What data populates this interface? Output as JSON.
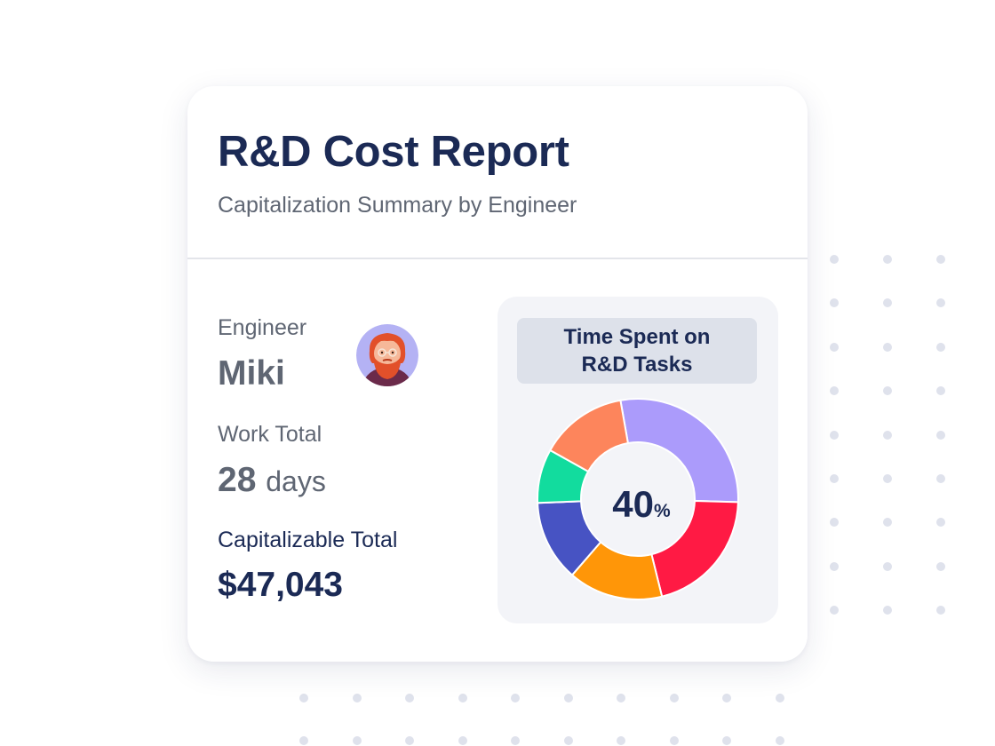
{
  "report": {
    "title": "R&D Cost Report",
    "subtitle": "Capitalization Summary by Engineer"
  },
  "engineer": {
    "label": "Engineer",
    "name": "Miki",
    "avatar_icon": "bearded-man-avatar-icon"
  },
  "work_total": {
    "label": "Work Total",
    "value": "28",
    "unit": "days"
  },
  "capitalizable_total": {
    "label": "Capitalizable Total",
    "value": "$47,043"
  },
  "chart": {
    "title_line1": "Time Spent on",
    "title_line2": "R&D Tasks",
    "center_value": "40",
    "center_unit": "%"
  },
  "chart_data": {
    "type": "pie",
    "title": "Time Spent on R&D Tasks",
    "center_label": "40%",
    "series": [
      {
        "share": 0.26,
        "color": "#ab9bfb"
      },
      {
        "share": 0.19,
        "color": "#ff1a44"
      },
      {
        "share": 0.14,
        "color": "#ff9608"
      },
      {
        "share": 0.12,
        "color": "#4753c3"
      },
      {
        "share": 0.08,
        "color": "#12dc9e"
      },
      {
        "share": 0.13,
        "color": "#fd855c"
      }
    ]
  },
  "colors": {
    "navy": "#1b2a55",
    "gray_text": "#5f6673",
    "dot": "#dfe2ec"
  }
}
